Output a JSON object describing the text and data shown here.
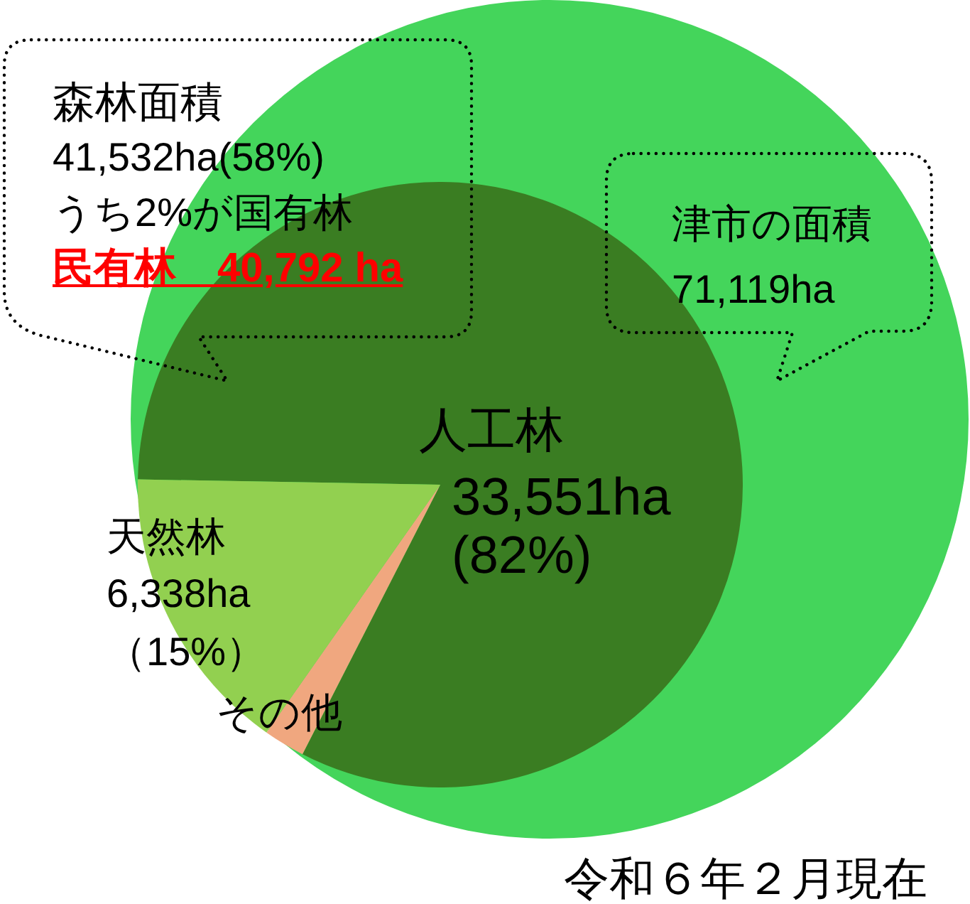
{
  "chart_data": [
    {
      "type": "pie",
      "categories": [
        "津市の面積"
      ],
      "values": [
        71119
      ],
      "value_labels": [
        "71,119ha"
      ],
      "colors": [
        "#44d55b"
      ],
      "annotations": [
        "令和６年２月現在"
      ]
    },
    {
      "type": "pie",
      "categories": [
        "人工林",
        "その他",
        "天然林"
      ],
      "values": [
        33551,
        903,
        6338
      ],
      "value_labels": [
        "33,551ha\n(82%)",
        null,
        "6,338ha\n（15%）"
      ],
      "colors": [
        "#3a7d22",
        "#f0a77f",
        "#92d050"
      ],
      "annotations": [
        "森林面積",
        "41,532ha(58%)",
        "うち2%が国有林",
        "民有林　40,792 ha"
      ]
    }
  ]
}
